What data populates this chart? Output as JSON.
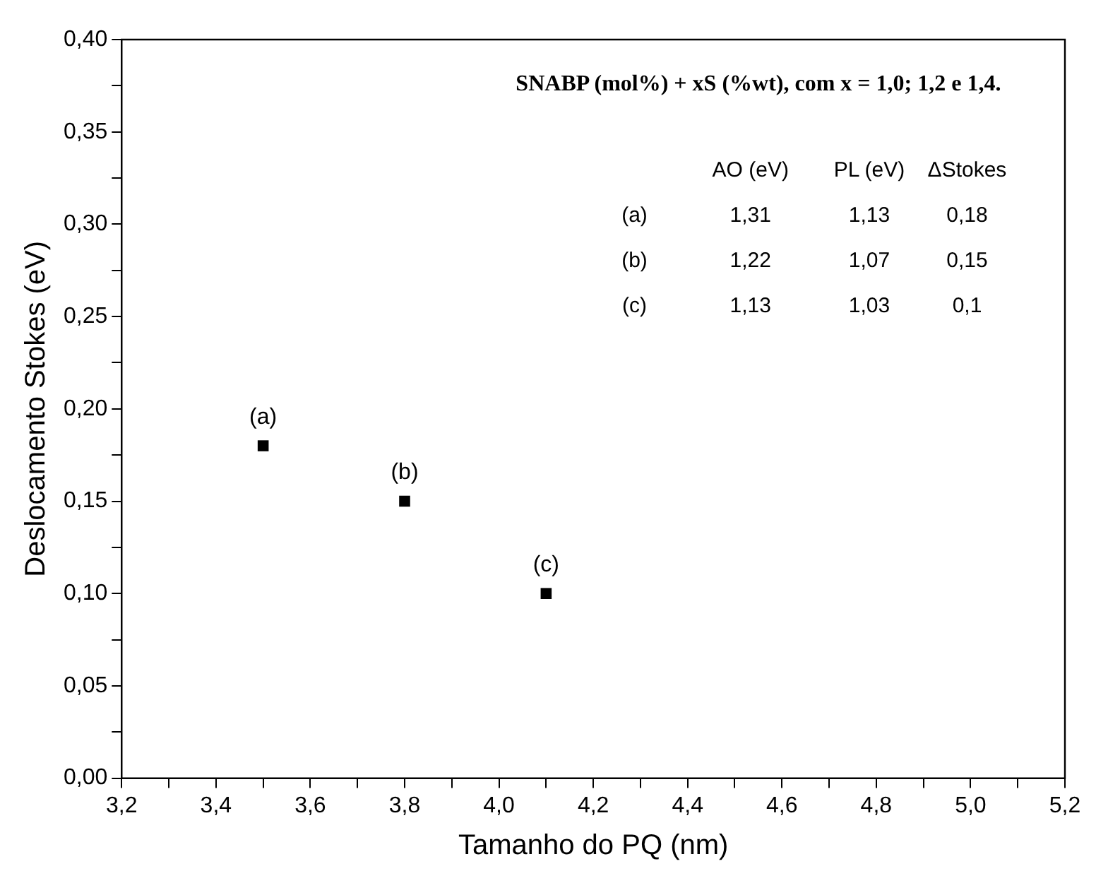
{
  "chart_data": {
    "type": "scatter",
    "xlabel": "Tamanho do PQ (nm)",
    "ylabel": "Deslocamento Stokes (eV)",
    "x": [
      3.5,
      3.8,
      4.1
    ],
    "series": [
      {
        "color": "#000000",
        "values": [
          0.18,
          0.15,
          0.1
        ]
      }
    ],
    "marker": "square",
    "grid": false,
    "legend": false,
    "xlim": [
      3.2,
      5.2
    ],
    "xticks": [
      {
        "value": 3.2,
        "label": "3,2"
      },
      {
        "value": 3.3,
        "label": null
      },
      {
        "value": 3.4,
        "label": "3,4"
      },
      {
        "value": 3.5,
        "label": null
      },
      {
        "value": 3.6,
        "label": "3,6"
      },
      {
        "value": 3.7,
        "label": null
      },
      {
        "value": 3.8,
        "label": "3,8"
      },
      {
        "value": 3.9,
        "label": null
      },
      {
        "value": 4.0,
        "label": "4,0"
      },
      {
        "value": 4.1,
        "label": null
      },
      {
        "value": 4.2,
        "label": "4,2"
      },
      {
        "value": 4.3,
        "label": null
      },
      {
        "value": 4.4,
        "label": "4,4"
      },
      {
        "value": 4.5,
        "label": null
      },
      {
        "value": 4.6,
        "label": "4,6"
      },
      {
        "value": 4.7,
        "label": null
      },
      {
        "value": 4.8,
        "label": "4,8"
      },
      {
        "value": 4.9,
        "label": null
      },
      {
        "value": 5.0,
        "label": "5,0"
      },
      {
        "value": 5.1,
        "label": null
      },
      {
        "value": 5.2,
        "label": "5,2"
      }
    ],
    "ylim": [
      0,
      0.4
    ],
    "yticks": [
      {
        "value": 0,
        "label": "0,00"
      },
      {
        "value": 0.025,
        "label": null
      },
      {
        "value": 0.05,
        "label": "0,05"
      },
      {
        "value": 0.075,
        "label": null
      },
      {
        "value": 0.1,
        "label": "0,10"
      },
      {
        "value": 0.125,
        "label": null
      },
      {
        "value": 0.15,
        "label": "0,15"
      },
      {
        "value": 0.175,
        "label": null
      },
      {
        "value": 0.2,
        "label": "0,20"
      },
      {
        "value": 0.225,
        "label": null
      },
      {
        "value": 0.25,
        "label": "0,25"
      },
      {
        "value": 0.275,
        "label": null
      },
      {
        "value": 0.3,
        "label": "0,30"
      },
      {
        "value": 0.325,
        "label": null
      },
      {
        "value": 0.35,
        "label": "0,35"
      },
      {
        "value": 0.375,
        "label": null
      },
      {
        "value": 0.4,
        "label": "0,40"
      }
    ],
    "annotations": [
      "SNABP (mol%) + xS (%wt), com x = 1,0; 1,2 e 1,4.",
      "AO (eV)",
      "PL (eV)",
      "ΔStokes",
      "(a)",
      "1,31",
      "1,13",
      "0,18",
      "(b)",
      "1,22",
      "1,07",
      "0,15",
      "(c)",
      "1,13",
      "1,03",
      "0,1",
      {
        "text": "(a)",
        "x": 3.5,
        "y": 0.18
      },
      {
        "text": "(b)",
        "x": 3.8,
        "y": 0.15
      },
      {
        "text": "(c)",
        "x": 4.1,
        "y": 0.1
      }
    ]
  }
}
